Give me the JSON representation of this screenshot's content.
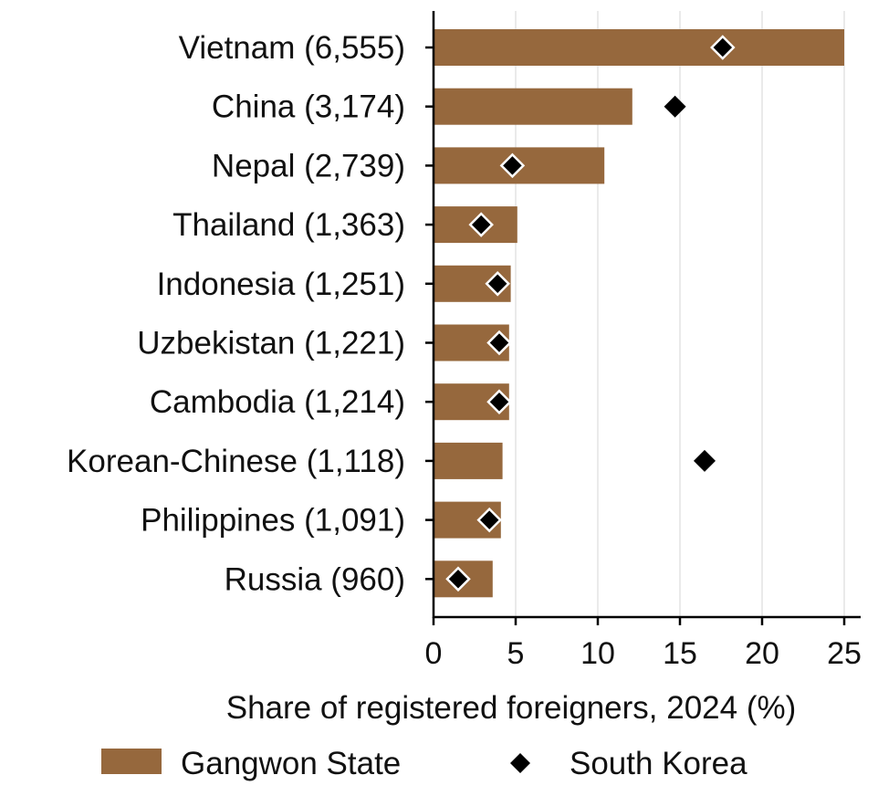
{
  "chart_data": {
    "type": "bar",
    "orientation": "horizontal",
    "title": "",
    "xlabel": "Share of registered foreigners, 2024 (%)",
    "ylabel": "",
    "xlim": [
      0,
      26
    ],
    "xticks": [
      "0",
      "5",
      "10",
      "15",
      "20",
      "25"
    ],
    "grid": "vertical gridlines",
    "legend_position": "bottom",
    "categories": [
      "Vietnam (6,555)",
      "China (3,174)",
      "Nepal (2,739)",
      "Thailand (1,363)",
      "Indonesia (1,251)",
      "Uzbekistan (1,221)",
      "Cambodia (1,214)",
      "Korean-Chinese (1,118)",
      "Philippines (1,091)",
      "Russia (960)"
    ],
    "series": [
      {
        "name": "Gangwon State",
        "mark": "bar",
        "color": "#96683D",
        "values": [
          25.0,
          12.1,
          10.4,
          5.1,
          4.7,
          4.6,
          4.6,
          4.2,
          4.1,
          3.6
        ]
      },
      {
        "name": "South Korea",
        "mark": "diamond",
        "color": "#000000",
        "values": [
          17.6,
          14.7,
          4.8,
          2.9,
          3.9,
          4.0,
          4.0,
          16.5,
          3.4,
          1.5
        ]
      }
    ]
  }
}
